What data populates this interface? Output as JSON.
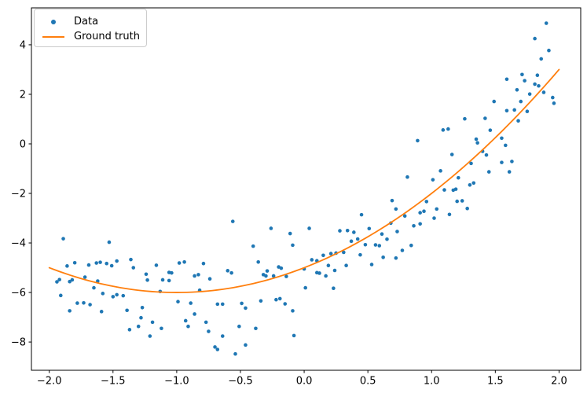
{
  "figure": {
    "background": "#ffffff"
  },
  "legend": {
    "position": "upper left",
    "items": [
      {
        "label": "Data",
        "marker": "dot",
        "color": "#1f77b4"
      },
      {
        "label": "Ground truth",
        "marker": "line",
        "color": "#ff7f0e"
      }
    ]
  },
  "chart_data": {
    "type": "scatter",
    "title": "",
    "xlabel": "",
    "ylabel": "",
    "grid": false,
    "legend_position": "upper left",
    "xlim": [
      -2.14,
      2.17
    ],
    "ylim": [
      -9.14,
      5.49
    ],
    "xticks": {
      "values": [
        -2.0,
        -1.5,
        -1.0,
        -0.5,
        0.0,
        0.5,
        1.0,
        1.5,
        2.0
      ],
      "labels": [
        "−2.0",
        "−1.5",
        "−1.0",
        "−0.5",
        "0.0",
        "0.5",
        "1.0",
        "1.5",
        "2.0"
      ]
    },
    "yticks": {
      "values": [
        -8,
        -6,
        -4,
        -2,
        0,
        2,
        4
      ],
      "labels": [
        "−8",
        "−6",
        "−4",
        "−2",
        "0",
        "2",
        "4"
      ]
    },
    "axis_color": "#000000",
    "tick_label_color": "#000000",
    "series": [
      {
        "name": "Data",
        "type": "scatter",
        "marker": "dot",
        "color": "#1f77b4",
        "points": [
          [
            -1.89,
            -3.83
          ],
          [
            -1.53,
            -3.97
          ],
          [
            -1.86,
            -4.93
          ],
          [
            -1.8,
            -4.8
          ],
          [
            -1.69,
            -4.89
          ],
          [
            -1.63,
            -4.81
          ],
          [
            -1.6,
            -4.78
          ],
          [
            -1.55,
            -4.83
          ],
          [
            -1.51,
            -4.92
          ],
          [
            -1.47,
            -4.73
          ],
          [
            -1.36,
            -4.67
          ],
          [
            -1.34,
            -5.0
          ],
          [
            -1.24,
            -5.26
          ],
          [
            -1.16,
            -4.9
          ],
          [
            -1.06,
            -5.19
          ],
          [
            -1.94,
            -5.57
          ],
          [
            -1.92,
            -5.48
          ],
          [
            -1.84,
            -5.56
          ],
          [
            -1.82,
            -5.49
          ],
          [
            -1.72,
            -5.38
          ],
          [
            -1.62,
            -5.54
          ],
          [
            -1.23,
            -5.5
          ],
          [
            -1.11,
            -5.49
          ],
          [
            -1.91,
            -6.12
          ],
          [
            -1.65,
            -5.81
          ],
          [
            -1.58,
            -6.04
          ],
          [
            -1.5,
            -6.17
          ],
          [
            -1.47,
            -6.09
          ],
          [
            -1.42,
            -6.13
          ],
          [
            -1.13,
            -5.96
          ],
          [
            -1.78,
            -6.43
          ],
          [
            -1.73,
            -6.42
          ],
          [
            -1.68,
            -6.49
          ],
          [
            -1.84,
            -6.74
          ],
          [
            -1.59,
            -6.77
          ],
          [
            -1.39,
            -6.72
          ],
          [
            -1.27,
            -6.61
          ],
          [
            -1.28,
            -7.02
          ],
          [
            -1.19,
            -7.2
          ],
          [
            -1.12,
            -7.45
          ],
          [
            -1.37,
            -7.5
          ],
          [
            -1.3,
            -7.37
          ],
          [
            -1.21,
            -7.76
          ],
          [
            -1.06,
            -5.52
          ],
          [
            -0.56,
            -3.13
          ],
          [
            -0.26,
            -3.41
          ],
          [
            -0.11,
            -3.62
          ],
          [
            -0.09,
            -4.09
          ],
          [
            -0.4,
            -4.13
          ],
          [
            -0.98,
            -4.81
          ],
          [
            -0.94,
            -4.77
          ],
          [
            -0.79,
            -4.83
          ],
          [
            -0.36,
            -4.77
          ],
          [
            -0.86,
            -5.33
          ],
          [
            -0.83,
            -5.28
          ],
          [
            -0.74,
            -5.45
          ],
          [
            -0.6,
            -5.12
          ],
          [
            -0.57,
            -5.21
          ],
          [
            -0.32,
            -5.28
          ],
          [
            -0.3,
            -5.33
          ],
          [
            -0.29,
            -5.13
          ],
          [
            -0.24,
            -5.33
          ],
          [
            -0.2,
            -4.97
          ],
          [
            -0.18,
            -5.02
          ],
          [
            -0.14,
            -5.35
          ],
          [
            0.0,
            -5.05
          ],
          [
            0.01,
            -5.81
          ],
          [
            -0.82,
            -5.91
          ],
          [
            -0.99,
            -6.37
          ],
          [
            -0.89,
            -6.43
          ],
          [
            -0.68,
            -6.47
          ],
          [
            -0.64,
            -6.47
          ],
          [
            -0.49,
            -6.44
          ],
          [
            -0.46,
            -6.63
          ],
          [
            -0.34,
            -6.34
          ],
          [
            -0.22,
            -6.29
          ],
          [
            -0.19,
            -6.25
          ],
          [
            -0.15,
            -6.46
          ],
          [
            -0.86,
            -6.87
          ],
          [
            -0.93,
            -7.14
          ],
          [
            -0.91,
            -7.37
          ],
          [
            -0.77,
            -7.2
          ],
          [
            -0.75,
            -7.57
          ],
          [
            -0.51,
            -7.37
          ],
          [
            -0.38,
            -7.45
          ],
          [
            -0.64,
            -7.76
          ],
          [
            -0.7,
            -8.2
          ],
          [
            -0.68,
            -8.3
          ],
          [
            -0.46,
            -8.12
          ],
          [
            -0.54,
            -8.48
          ],
          [
            -0.08,
            -7.74
          ],
          [
            -0.09,
            -6.74
          ],
          [
            -1.04,
            -5.21
          ],
          [
            0.04,
            -3.41
          ],
          [
            0.28,
            -3.51
          ],
          [
            0.34,
            -3.5
          ],
          [
            0.39,
            -3.57
          ],
          [
            0.45,
            -2.86
          ],
          [
            0.51,
            -3.42
          ],
          [
            0.37,
            -3.93
          ],
          [
            0.42,
            -3.84
          ],
          [
            0.48,
            -4.07
          ],
          [
            0.56,
            -4.08
          ],
          [
            0.59,
            -4.11
          ],
          [
            0.61,
            -3.64
          ],
          [
            0.65,
            -3.85
          ],
          [
            0.69,
            -2.29
          ],
          [
            0.72,
            -2.63
          ],
          [
            0.68,
            -3.2
          ],
          [
            0.73,
            -3.54
          ],
          [
            0.79,
            -2.91
          ],
          [
            0.86,
            -3.31
          ],
          [
            0.91,
            -3.23
          ],
          [
            0.91,
            -2.78
          ],
          [
            0.94,
            -2.72
          ],
          [
            0.96,
            -2.33
          ],
          [
            1.04,
            -2.63
          ],
          [
            1.02,
            -3.0
          ],
          [
            0.77,
            -4.3
          ],
          [
            0.84,
            -4.1
          ],
          [
            0.15,
            -4.5
          ],
          [
            0.21,
            -4.43
          ],
          [
            0.25,
            -4.41
          ],
          [
            0.31,
            -4.38
          ],
          [
            0.06,
            -4.68
          ],
          [
            0.1,
            -4.72
          ],
          [
            0.19,
            -4.91
          ],
          [
            0.24,
            -5.11
          ],
          [
            0.1,
            -5.2
          ],
          [
            0.12,
            -5.22
          ],
          [
            0.17,
            -5.33
          ],
          [
            0.23,
            -5.83
          ],
          [
            0.33,
            -4.91
          ],
          [
            0.44,
            -4.48
          ],
          [
            0.53,
            -4.87
          ],
          [
            0.62,
            -4.58
          ],
          [
            0.72,
            -4.61
          ],
          [
            1.2,
            -2.32
          ],
          [
            1.24,
            -2.3
          ],
          [
            1.28,
            -2.61
          ],
          [
            1.14,
            -2.85
          ],
          [
            1.1,
            -1.86
          ],
          [
            1.17,
            -1.87
          ],
          [
            0.89,
            0.13
          ],
          [
            0.81,
            -1.34
          ],
          [
            1.01,
            -1.45
          ],
          [
            1.07,
            -1.09
          ],
          [
            1.9,
            4.87
          ],
          [
            1.81,
            4.25
          ],
          [
            1.92,
            3.77
          ],
          [
            1.86,
            3.43
          ],
          [
            1.83,
            2.77
          ],
          [
            1.84,
            2.34
          ],
          [
            1.71,
            2.8
          ],
          [
            1.59,
            2.61
          ],
          [
            1.73,
            2.55
          ],
          [
            1.67,
            2.18
          ],
          [
            1.77,
            2.01
          ],
          [
            1.81,
            2.41
          ],
          [
            1.88,
            2.08
          ],
          [
            1.7,
            1.71
          ],
          [
            1.95,
            1.87
          ],
          [
            1.96,
            1.64
          ],
          [
            1.59,
            1.34
          ],
          [
            1.65,
            1.37
          ],
          [
            1.75,
            1.31
          ],
          [
            1.49,
            1.71
          ],
          [
            1.42,
            1.03
          ],
          [
            1.46,
            0.55
          ],
          [
            1.26,
            1.01
          ],
          [
            1.13,
            0.6
          ],
          [
            1.09,
            0.56
          ],
          [
            1.68,
            0.93
          ],
          [
            1.35,
            0.19
          ],
          [
            1.36,
            0.04
          ],
          [
            1.55,
            0.23
          ],
          [
            1.58,
            -0.06
          ],
          [
            1.16,
            -0.43
          ],
          [
            1.4,
            -0.3
          ],
          [
            1.43,
            -0.45
          ],
          [
            1.31,
            -0.79
          ],
          [
            1.55,
            -0.75
          ],
          [
            1.63,
            -0.71
          ],
          [
            1.45,
            -1.13
          ],
          [
            1.61,
            -1.13
          ],
          [
            1.21,
            -1.37
          ],
          [
            1.33,
            -1.58
          ],
          [
            1.3,
            -1.66
          ],
          [
            1.19,
            -1.83
          ]
        ]
      },
      {
        "name": "Ground truth",
        "type": "line",
        "color": "#ff7f0e",
        "equation": "y = x^2 + 2x - 5",
        "polynomial_coefficients": [
          1,
          2,
          -5
        ],
        "x_range": [
          -2,
          2
        ],
        "key_points": [
          [
            -2,
            -5
          ],
          [
            -1,
            -6
          ],
          [
            0,
            -5
          ],
          [
            1,
            -2
          ],
          [
            2,
            3
          ]
        ]
      }
    ]
  }
}
